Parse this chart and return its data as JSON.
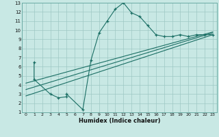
{
  "xlabel": "Humidex (Indice chaleur)",
  "bg_color": "#c8e8e4",
  "grid_color": "#9ec8c4",
  "line_color": "#1a6e64",
  "xlim": [
    -0.5,
    23.5
  ],
  "ylim": [
    1,
    13
  ],
  "xticks": [
    0,
    1,
    2,
    3,
    4,
    5,
    6,
    7,
    8,
    9,
    10,
    11,
    12,
    13,
    14,
    15,
    16,
    17,
    18,
    19,
    20,
    21,
    22,
    23
  ],
  "yticks": [
    1,
    2,
    3,
    4,
    5,
    6,
    7,
    8,
    9,
    10,
    11,
    12,
    13
  ],
  "line1_x": [
    1,
    1,
    3,
    4,
    5,
    5,
    7,
    8,
    9,
    10,
    11,
    12,
    13,
    14,
    15,
    16,
    17,
    18,
    19,
    20,
    21,
    22,
    23
  ],
  "line1_y": [
    6.5,
    4.6,
    3.0,
    2.6,
    2.7,
    3.0,
    1.3,
    6.7,
    9.7,
    11.0,
    12.3,
    13.0,
    11.9,
    11.5,
    10.5,
    9.5,
    9.3,
    9.3,
    9.5,
    9.3,
    9.5,
    9.5,
    9.5
  ],
  "line2_x": [
    0,
    23
  ],
  "line2_y": [
    2.8,
    9.5
  ],
  "line3_x": [
    0,
    23
  ],
  "line3_y": [
    3.5,
    9.7
  ],
  "line4_x": [
    0,
    23
  ],
  "line4_y": [
    4.2,
    9.8
  ]
}
